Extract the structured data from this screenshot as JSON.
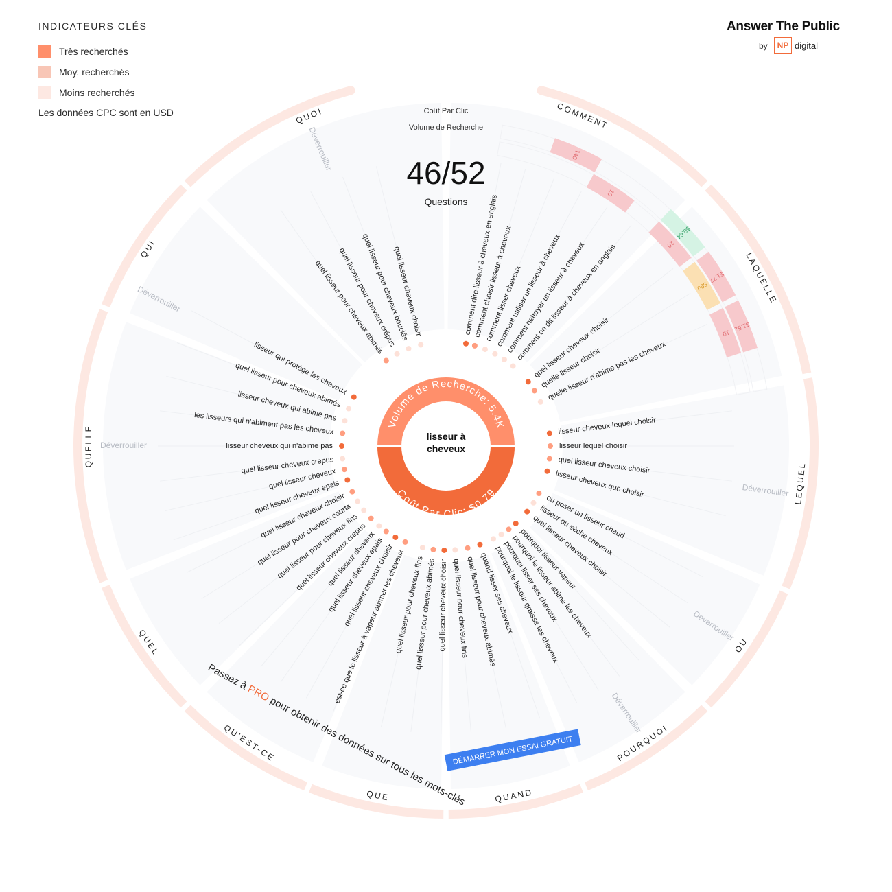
{
  "legend": {
    "title": "INDICATEURS CLÉS",
    "items": [
      {
        "label": "Très recherchés",
        "color": "#ff8f6b"
      },
      {
        "label": "Moy. recherchés",
        "color": "#f8c6b6"
      },
      {
        "label": "Moins recherchés",
        "color": "#fde8e2"
      }
    ],
    "note": "Les données CPC sont en USD"
  },
  "brand": {
    "name": "Answer The Public",
    "by": "by",
    "np": "NP",
    "digital": "digital"
  },
  "header": {
    "cpc_label": "Coût Par Clic",
    "volume_label": "Volume de Recherche",
    "count": "46/52",
    "count_label": "Questions"
  },
  "center": {
    "keyword_line1": "lisseur à",
    "keyword_line2": "cheveux",
    "volume_text": "Volume de Recherche: 5.4K",
    "cpc_text": "Coût Par Clic: $0.79"
  },
  "unlock_label": "Déverrouiller",
  "categories": [
    {
      "label": "COMMENT",
      "start": 0,
      "end": 45
    },
    {
      "label": "LAQUELLE",
      "start": 45,
      "end": 79
    },
    {
      "label": "LEQUEL",
      "start": 79,
      "end": 113
    },
    {
      "label": "OU",
      "start": 113,
      "end": 135
    },
    {
      "label": "POURQUOI",
      "start": 135,
      "end": 158
    },
    {
      "label": "QUAND",
      "start": 158,
      "end": 180
    },
    {
      "label": "QUE",
      "start": 180,
      "end": 202
    },
    {
      "label": "QU'EST-CE",
      "start": 202,
      "end": 225
    },
    {
      "label": "QUEL",
      "start": 225,
      "end": 248
    },
    {
      "label": "QUELLE",
      "start": 248,
      "end": 292
    },
    {
      "label": "QUI",
      "start": 292,
      "end": 315
    },
    {
      "label": "QUOI",
      "start": 315,
      "end": 360
    }
  ],
  "unlock_positions": [
    {
      "angle": 98
    },
    {
      "angle": 124
    },
    {
      "angle": 146
    },
    {
      "angle": 270
    },
    {
      "angle": 297
    },
    {
      "angle": 337
    }
  ],
  "questions": [
    {
      "text": "comment dire lisseur à cheveux en anglais",
      "angle": 11,
      "dot": "dark"
    },
    {
      "text": "comment choisir lisseur à cheveux",
      "angle": 16,
      "dot": "mid"
    },
    {
      "text": "comment lisser cheveux",
      "angle": 22,
      "dot": "light"
    },
    {
      "text": "comment utiliser un lisseur à cheveux",
      "angle": 28,
      "dot": "light"
    },
    {
      "text": "comment nettoyer un lisseur à cheveux",
      "angle": 34,
      "dot": "light"
    },
    {
      "text": "comment on dit lisseur à cheveux en anglais",
      "angle": 40,
      "dot": "light"
    },
    {
      "text": "quel lisseur cheveux choisir",
      "angle": 52,
      "dot": "dark"
    },
    {
      "text": "quelle lisseur choisir",
      "angle": 58,
      "dot": "mid"
    },
    {
      "text": "quelle lisseur n'abime pas les cheveux",
      "angle": 65,
      "dot": "light"
    },
    {
      "text": "lisseur cheveux lequel choisir",
      "angle": 83,
      "dot": "dark"
    },
    {
      "text": "lisseur lequel choisir",
      "angle": 90,
      "dot": "mid"
    },
    {
      "text": "quel lisseur cheveux choisir",
      "angle": 97,
      "dot": "mid"
    },
    {
      "text": "lisseur cheveux que choisir",
      "angle": 104,
      "dot": "dark"
    },
    {
      "text": "ou poser un lisseur chaud",
      "angle": 117,
      "dot": "mid"
    },
    {
      "text": "lisseur ou sèche cheveux",
      "angle": 123,
      "dot": "light"
    },
    {
      "text": "quel lisseur cheveux choisir",
      "angle": 129,
      "dot": "dark"
    },
    {
      "text": "pourquoi lisseur vapeur",
      "angle": 138,
      "dot": "dark"
    },
    {
      "text": "pourquoi le lisseur abime les cheveux",
      "angle": 143,
      "dot": "mid"
    },
    {
      "text": "pourquoi lisser ses cheveux",
      "angle": 148,
      "dot": "light"
    },
    {
      "text": "pourquoi le lisseur graisse les cheveux",
      "angle": 153,
      "dot": "light"
    },
    {
      "text": "quand lisser ses cheveux",
      "angle": 161,
      "dot": "dark"
    },
    {
      "text": "quel lisseur pour cheveux abimés",
      "angle": 168,
      "dot": "mid"
    },
    {
      "text": "quel lisseur pour cheveux fins",
      "angle": 175,
      "dot": "light"
    },
    {
      "text": "quel lisseur cheveux choisir",
      "angle": 181,
      "dot": "dark"
    },
    {
      "text": "quel lisseur pour cheveux abimés",
      "angle": 187,
      "dot": "mid"
    },
    {
      "text": "quel lisseur pour cheveux fins",
      "angle": 193,
      "dot": "light"
    },
    {
      "text": "est-ce que le lisseur à vapeur abîmer les cheveux",
      "angle": 203,
      "dot": "mid"
    },
    {
      "text": "quel lisseur cheveux choisir",
      "angle": 209,
      "dot": "dark"
    },
    {
      "text": "quel lisseur cheveux epais",
      "angle": 215,
      "dot": "mid"
    },
    {
      "text": "quel lisseur cheveux",
      "angle": 220,
      "dot": "light"
    },
    {
      "text": "quel lisseur cheveux crepus",
      "angle": 226,
      "dot": "mid"
    },
    {
      "text": "quel lisseur pour cheveux fins",
      "angle": 232,
      "dot": "light"
    },
    {
      "text": "quel lisseur pour cheveux courts",
      "angle": 238,
      "dot": "light"
    },
    {
      "text": "quel lisseur cheveux choisir",
      "angle": 244,
      "dot": "mid"
    },
    {
      "text": "quel lisseur cheveux epais",
      "angle": 251,
      "dot": "dark"
    },
    {
      "text": "quel lisseur cheveux",
      "angle": 257,
      "dot": "mid"
    },
    {
      "text": "quel lisseur cheveux crepus",
      "angle": 263,
      "dot": "light"
    },
    {
      "text": "lisseur cheveux qui n'abime pas",
      "angle": 270,
      "dot": "dark"
    },
    {
      "text": "les lisseurs qui n'abiment pas les cheveux",
      "angle": 277,
      "dot": "mid"
    },
    {
      "text": "lisseur cheveux qui abime pas",
      "angle": 284,
      "dot": "light"
    },
    {
      "text": "quel lisseur pour cheveux abimés",
      "angle": 291,
      "dot": "light"
    },
    {
      "text": "lisseur qui protège les cheveux",
      "angle": 298,
      "dot": "dark"
    },
    {
      "text": "quel lisseur pour cheveux abimés",
      "angle": 325,
      "dot": "mid"
    },
    {
      "text": "quel lisseur pour cheveux crépus",
      "angle": 332,
      "dot": "light"
    },
    {
      "text": "quel lisseur pour cheveux bouclés",
      "angle": 339,
      "dot": "light"
    },
    {
      "text": "quel lisseur cheveux choisir",
      "angle": 346,
      "dot": "light"
    }
  ],
  "metric_cells": [
    {
      "text": "140",
      "angle": 24,
      "ring": "outer",
      "color": "#f7c9cc",
      "fg": "#e06a6f"
    },
    {
      "text": "10",
      "angle": 33,
      "ring": "inner",
      "color": "#f7c9cc",
      "fg": "#e06a6f"
    },
    {
      "text": "$0.64",
      "angle": 48,
      "ring": "outer",
      "color": "#d5f3e4",
      "fg": "#3aa46d"
    },
    {
      "text": "10",
      "angle": 48,
      "ring": "inner",
      "color": "#f7c9cc",
      "fg": "#e06a6f"
    },
    {
      "text": "$1.77",
      "angle": 58,
      "ring": "outer",
      "color": "#f7c9cc",
      "fg": "#e06a6f"
    },
    {
      "text": "590",
      "angle": 58,
      "ring": "inner",
      "color": "#fbe0b3",
      "fg": "#d99a2b"
    },
    {
      "text": "$1.52",
      "angle": 68,
      "ring": "outer",
      "color": "#f7c9cc",
      "fg": "#e06a6f"
    },
    {
      "text": "10",
      "angle": 68,
      "ring": "inner",
      "color": "#f7c9cc",
      "fg": "#e06a6f"
    }
  ],
  "promo": {
    "prefix": "Passez à ",
    "pro": "PRO",
    "suffix": " pour obtenir des données sur tous les mots-clés",
    "cta": "DÉMARRER MON ESSAI GRATUIT"
  },
  "colors": {
    "accent": "#f26b3a",
    "accent_light": "#ff8f6b",
    "cta": "#3d7ff0",
    "ring": "#fde8e2"
  }
}
